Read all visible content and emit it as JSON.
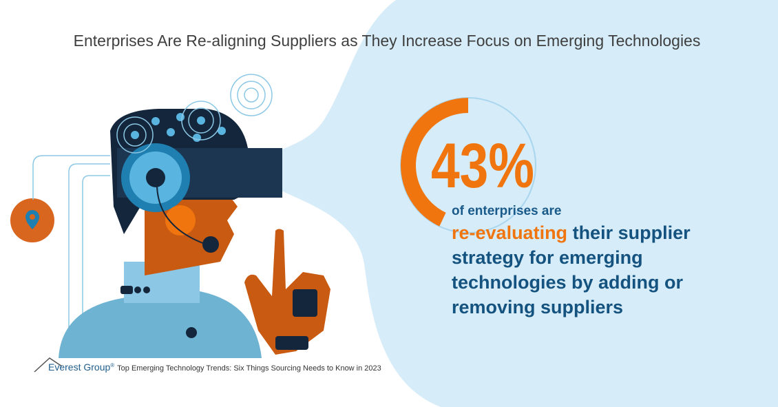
{
  "header": {
    "title": "Enterprises Are Re-aligning Suppliers as They Increase Focus on Emerging Technologies"
  },
  "stat": {
    "value": 43,
    "label": "43%",
    "intro": "of enterprises are",
    "highlight": "re-evaluating",
    "text": "their supplier strategy for emerging technologies by adding or removing suppliers"
  },
  "footer": {
    "brand": "Everest Group",
    "mark": "®",
    "source": "Top Emerging Technology Trends: Six Things Sourcing Needs to Know in 2023"
  }
}
